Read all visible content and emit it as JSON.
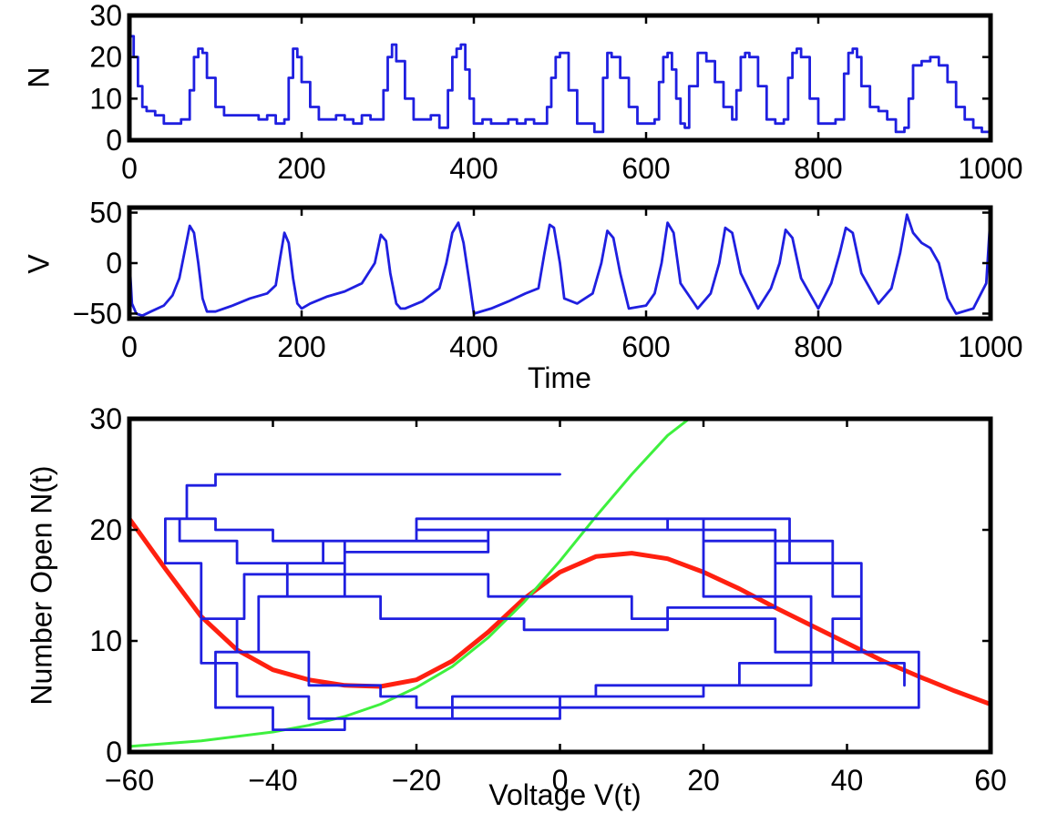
{
  "chart_data": [
    {
      "type": "line",
      "ylabel": "N",
      "xlim": [
        0,
        1000
      ],
      "ylim": [
        0,
        30
      ],
      "xticks": [
        "0",
        "200",
        "400",
        "600",
        "800",
        "1000"
      ],
      "yticks": [
        "0",
        "10",
        "20",
        "30"
      ],
      "series": [
        {
          "color": "#1f1fe0",
          "style": "step",
          "x": [
            0,
            5,
            10,
            15,
            20,
            30,
            40,
            50,
            60,
            70,
            75,
            80,
            85,
            90,
            100,
            110,
            120,
            130,
            140,
            150,
            160,
            170,
            180,
            185,
            190,
            195,
            200,
            210,
            220,
            230,
            240,
            250,
            260,
            270,
            280,
            290,
            295,
            300,
            305,
            310,
            320,
            330,
            340,
            350,
            360,
            370,
            375,
            380,
            385,
            390,
            395,
            400,
            410,
            420,
            430,
            440,
            450,
            460,
            470,
            480,
            485,
            490,
            495,
            500,
            510,
            520,
            530,
            540,
            550,
            555,
            560,
            570,
            580,
            590,
            600,
            610,
            615,
            620,
            625,
            630,
            635,
            640,
            645,
            650,
            660,
            670,
            680,
            690,
            700,
            705,
            710,
            715,
            720,
            730,
            740,
            750,
            760,
            765,
            770,
            775,
            780,
            790,
            800,
            810,
            820,
            830,
            835,
            840,
            845,
            850,
            860,
            870,
            880,
            890,
            900,
            905,
            910,
            920,
            930,
            940,
            950,
            960,
            970,
            980,
            990,
            1000
          ],
          "y": [
            25,
            20,
            13,
            8,
            7,
            6,
            4,
            4,
            5,
            12,
            20,
            22,
            21,
            15,
            8,
            6,
            6,
            6,
            6,
            5,
            6,
            4,
            5,
            15,
            22,
            20,
            14,
            8,
            5,
            5,
            6,
            5,
            4,
            6,
            5,
            5,
            12,
            20,
            23,
            19,
            10,
            5,
            5,
            6,
            3,
            12,
            20,
            22,
            23,
            17,
            10,
            4,
            5,
            4,
            4,
            5,
            4,
            5,
            4,
            4,
            8,
            15,
            20,
            21,
            12,
            4,
            4,
            2,
            15,
            21,
            20,
            15,
            8,
            4,
            4,
            5,
            14,
            20,
            21,
            17,
            10,
            4,
            3,
            13,
            21,
            19,
            14,
            8,
            5,
            12,
            20,
            21,
            20,
            13,
            5,
            4,
            5,
            15,
            21,
            22,
            20,
            10,
            4,
            4,
            5,
            16,
            21,
            22,
            20,
            13,
            8,
            7,
            5,
            2,
            3,
            10,
            18,
            19,
            20,
            18,
            14,
            8,
            5,
            3,
            2,
            6
          ]
        }
      ]
    },
    {
      "type": "line",
      "xlabel": "Time",
      "ylabel": "V",
      "xlim": [
        0,
        1000
      ],
      "ylim": [
        -55,
        55
      ],
      "xticks": [
        "0",
        "200",
        "400",
        "600",
        "800",
        "1000"
      ],
      "yticks": [
        "-50",
        "0",
        "50"
      ],
      "series": [
        {
          "color": "#1f1fe0",
          "x": [
            0,
            3,
            8,
            15,
            25,
            40,
            50,
            58,
            65,
            70,
            75,
            80,
            85,
            90,
            100,
            120,
            140,
            160,
            170,
            175,
            180,
            185,
            190,
            195,
            200,
            210,
            230,
            250,
            270,
            285,
            292,
            298,
            303,
            310,
            315,
            320,
            340,
            360,
            368,
            375,
            382,
            388,
            395,
            400,
            420,
            440,
            460,
            475,
            482,
            488,
            493,
            500,
            505,
            520,
            538,
            548,
            555,
            562,
            570,
            580,
            600,
            610,
            618,
            625,
            632,
            640,
            660,
            675,
            685,
            692,
            700,
            710,
            730,
            745,
            755,
            762,
            770,
            780,
            800,
            815,
            825,
            832,
            840,
            850,
            870,
            885,
            895,
            903,
            910,
            920,
            930,
            940,
            950,
            960,
            980,
            995,
            1000
          ],
          "y": [
            5,
            -40,
            -50,
            -52,
            -48,
            -42,
            -32,
            -15,
            15,
            37,
            30,
            0,
            -35,
            -48,
            -48,
            -42,
            -35,
            -30,
            -22,
            5,
            30,
            20,
            -15,
            -40,
            -45,
            -40,
            -33,
            -28,
            -20,
            0,
            28,
            22,
            -10,
            -40,
            -45,
            -45,
            -38,
            -25,
            0,
            30,
            40,
            20,
            -20,
            -50,
            -45,
            -38,
            -30,
            -25,
            10,
            38,
            35,
            0,
            -35,
            -40,
            -30,
            0,
            32,
            25,
            -10,
            -45,
            -42,
            -30,
            0,
            40,
            30,
            -20,
            -45,
            -30,
            0,
            35,
            30,
            -10,
            -45,
            -25,
            0,
            33,
            25,
            -15,
            -45,
            -20,
            10,
            35,
            30,
            -10,
            -40,
            -25,
            10,
            48,
            30,
            20,
            15,
            0,
            -35,
            -50,
            -45,
            -20,
            48
          ]
        }
      ]
    },
    {
      "type": "line",
      "xlabel": "Voltage V(t)",
      "ylabel": "Number Open N(t)",
      "xlim": [
        -60,
        60
      ],
      "ylim": [
        0,
        30
      ],
      "xticks": [
        "-60",
        "-40",
        "-20",
        "0",
        "20",
        "40",
        "60"
      ],
      "yticks": [
        "0",
        "10",
        "20",
        "30"
      ],
      "series": [
        {
          "color": "#ff2010",
          "x": [
            -60,
            -55,
            -50,
            -45,
            -40,
            -35,
            -30,
            -25,
            -20,
            -15,
            -10,
            -5,
            0,
            5,
            10,
            15,
            20,
            25,
            30,
            35,
            40,
            45,
            50,
            55,
            60
          ],
          "y": [
            21,
            16.5,
            12.2,
            9.2,
            7.4,
            6.5,
            6.0,
            5.9,
            6.5,
            8.2,
            10.8,
            13.8,
            16.2,
            17.6,
            17.9,
            17.4,
            16.2,
            14.7,
            13.0,
            11.4,
            9.8,
            8.2,
            6.8,
            5.5,
            4.3
          ]
        },
        {
          "color": "#3ef03e",
          "x": [
            -60,
            -50,
            -40,
            -35,
            -30,
            -25,
            -20,
            -15,
            -10,
            -5,
            0,
            5,
            10,
            15,
            18
          ],
          "y": [
            0.5,
            1.0,
            1.8,
            2.4,
            3.2,
            4.3,
            5.8,
            7.7,
            10.3,
            13.5,
            17.2,
            21.2,
            25.0,
            28.5,
            30
          ]
        },
        {
          "color": "#1f1fe0",
          "style": "step",
          "x": [
            0,
            -20,
            -35,
            -48,
            -52,
            -55,
            -50,
            -45,
            -35,
            -25,
            -20,
            0,
            20,
            40,
            50,
            50,
            30,
            10,
            -10,
            -30,
            -45,
            -53,
            -48,
            -40,
            -20,
            0,
            20,
            38,
            42,
            35,
            20,
            0,
            -20,
            -35,
            -45,
            -50,
            -44,
            -30,
            -10,
            10,
            30,
            42,
            38,
            25,
            5,
            -15,
            -30,
            -40,
            -48,
            -42,
            -30,
            -10,
            15,
            32,
            30,
            15,
            -5,
            -25,
            -38,
            -33,
            -20,
            0,
            20,
            35,
            48
          ],
          "y": [
            25,
            25,
            25,
            24,
            21,
            17,
            12,
            9,
            6,
            5,
            4,
            4,
            4,
            4,
            5,
            9,
            12,
            14,
            16,
            17,
            19,
            21,
            20,
            19,
            21,
            21,
            19,
            14,
            9,
            6,
            5,
            3,
            3,
            5,
            8,
            12,
            16,
            19,
            20,
            20,
            17,
            12,
            8,
            6,
            5,
            3,
            2,
            4,
            9,
            14,
            18,
            20,
            21,
            17,
            13,
            11,
            12,
            14,
            17,
            19,
            20,
            20,
            14,
            8,
            6
          ]
        }
      ]
    }
  ]
}
